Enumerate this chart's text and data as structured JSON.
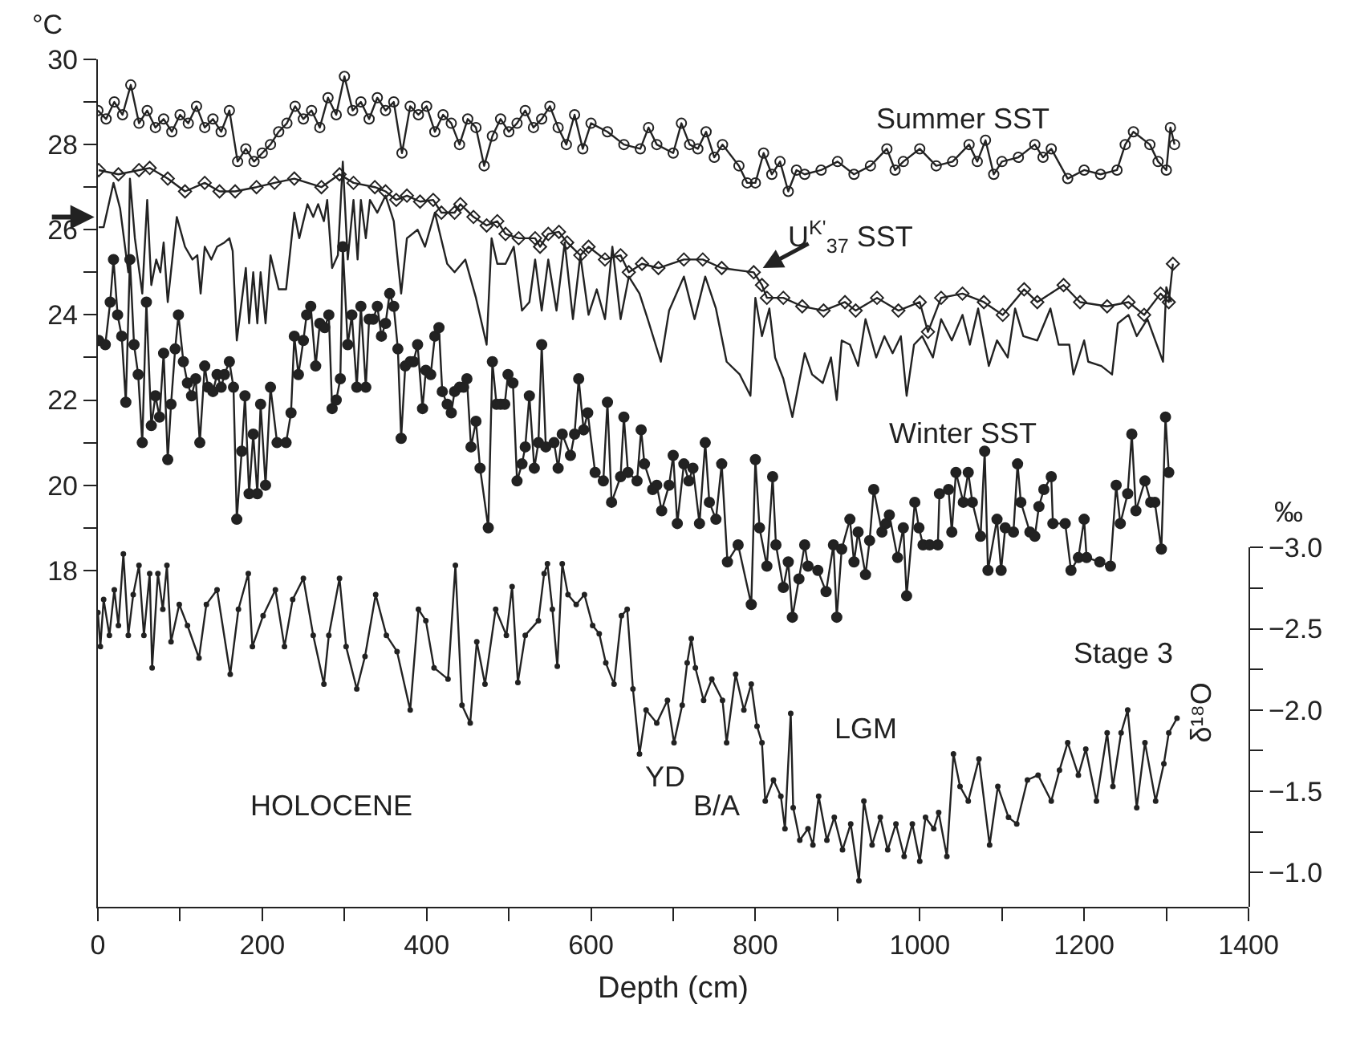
{
  "chart_data": {
    "type": "line",
    "xlabel": "Depth (cm)",
    "ylabel": "°C",
    "y2label": "δ¹⁸O",
    "xlim": [
      0,
      1400
    ],
    "xticks": [
      0,
      {
        "value": 100,
        "label": null
      },
      200,
      {
        "value": 300,
        "label": null
      },
      400,
      {
        "value": 500,
        "label": null
      },
      600,
      {
        "value": 700,
        "label": null
      },
      800,
      {
        "value": 900,
        "label": null
      },
      1000,
      {
        "value": 1100,
        "label": null
      },
      1200,
      {
        "value": 1300,
        "label": null
      },
      1400
    ],
    "ylim": [
      10.1,
      30
    ],
    "yticks": [
      18,
      {
        "value": 19,
        "label": null
      },
      20,
      {
        "value": 21,
        "label": null
      },
      22,
      {
        "value": 23,
        "label": null
      },
      24,
      {
        "value": 25,
        "label": null
      },
      26,
      {
        "value": 27,
        "label": null
      },
      28,
      {
        "value": 29,
        "label": null
      },
      30
    ],
    "y2lim": [
      -0.79,
      -3.0
    ],
    "y2ticks": [
      {
        "value": -3.0,
        "label": "−3.0"
      },
      {
        "value": -2.75,
        "label": null
      },
      {
        "value": -2.5,
        "label": "−2.5"
      },
      {
        "value": -2.25,
        "label": null
      },
      {
        "value": -2.0,
        "label": "−2.0"
      },
      {
        "value": -1.75,
        "label": null
      },
      {
        "value": -1.5,
        "label": "−1.5"
      },
      {
        "value": -1.25,
        "label": null
      },
      {
        "value": -1.0,
        "label": "−1.0"
      }
    ],
    "grid": false,
    "legend": false,
    "annotations": [
      "HOLOCENE",
      "YD",
      "B/A",
      "LGM",
      "Stage 3",
      "‰"
    ],
    "series": [
      {
        "name": "Summer SST",
        "color": "#222222",
        "marker": "circle-open",
        "x": [
          0,
          10,
          20,
          30,
          40,
          50,
          60,
          70,
          80,
          90,
          100,
          110,
          120,
          130,
          140,
          150,
          160,
          170,
          180,
          190,
          200,
          210,
          220,
          230,
          240,
          250,
          260,
          270,
          280,
          290,
          300,
          310,
          320,
          330,
          340,
          350,
          360,
          370,
          380,
          390,
          400,
          410,
          420,
          430,
          440,
          450,
          460,
          470,
          480,
          490,
          500,
          510,
          520,
          530,
          540,
          550,
          560,
          570,
          580,
          590,
          600,
          620,
          640,
          660,
          670,
          680,
          700,
          710,
          720,
          730,
          740,
          750,
          760,
          780,
          790,
          800,
          810,
          820,
          830,
          840,
          850,
          860,
          880,
          900,
          920,
          940,
          960,
          970,
          980,
          1000,
          1020,
          1040,
          1060,
          1070,
          1080,
          1090,
          1100,
          1120,
          1140,
          1150,
          1160,
          1180,
          1200,
          1220,
          1240,
          1250,
          1260,
          1280,
          1290,
          1300,
          1305,
          1310
        ],
        "values": [
          28.8,
          28.6,
          29.0,
          28.7,
          29.4,
          28.5,
          28.8,
          28.4,
          28.6,
          28.3,
          28.7,
          28.5,
          28.9,
          28.4,
          28.6,
          28.3,
          28.8,
          27.6,
          27.9,
          27.6,
          27.8,
          28.0,
          28.3,
          28.5,
          28.9,
          28.6,
          28.8,
          28.4,
          29.1,
          28.7,
          29.6,
          28.8,
          29.0,
          28.6,
          29.1,
          28.8,
          29.0,
          27.8,
          28.9,
          28.7,
          28.9,
          28.3,
          28.7,
          28.5,
          28.0,
          28.6,
          28.4,
          27.5,
          28.2,
          28.6,
          28.3,
          28.5,
          28.8,
          28.4,
          28.6,
          28.9,
          28.4,
          28.0,
          28.7,
          27.9,
          28.5,
          28.3,
          28.0,
          27.9,
          28.4,
          28.0,
          27.8,
          28.5,
          28.0,
          27.9,
          28.3,
          27.7,
          28.0,
          27.5,
          27.1,
          27.1,
          27.8,
          27.3,
          27.6,
          26.9,
          27.4,
          27.3,
          27.4,
          27.6,
          27.3,
          27.5,
          27.9,
          27.4,
          27.6,
          27.9,
          27.5,
          27.6,
          28.0,
          27.6,
          28.1,
          27.3,
          27.6,
          27.7,
          28.0,
          27.7,
          27.9,
          27.2,
          27.4,
          27.3,
          27.4,
          28.0,
          28.3,
          28.0,
          27.6,
          27.4,
          28.4,
          28.0
        ]
      },
      {
        "name": "U$^{K'}$$_{37}$ SST",
        "color": "#222222",
        "marker": "diamond-open",
        "x": [
          1,
          25,
          50,
          63,
          85,
          106,
          130,
          148,
          167,
          193,
          215,
          239,
          272,
          294,
          311,
          337,
          350,
          363,
          376,
          392,
          408,
          418,
          434,
          441,
          457,
          473,
          486,
          496,
          512,
          532,
          538,
          548,
          561,
          571,
          587,
          597,
          617,
          636,
          646,
          662,
          682,
          713,
          736,
          759,
          798,
          808,
          814,
          834,
          857,
          883,
          909,
          922,
          948,
          974,
          1000,
          1010,
          1026,
          1052,
          1078,
          1101,
          1127,
          1143,
          1175,
          1195,
          1228,
          1254,
          1273,
          1293,
          1303,
          1308
        ],
        "values": [
          27.4,
          27.3,
          27.4,
          27.45,
          27.2,
          26.9,
          27.1,
          26.9,
          26.9,
          27.0,
          27.1,
          27.2,
          27.0,
          27.3,
          27.1,
          27.0,
          26.9,
          26.7,
          26.8,
          26.66,
          26.7,
          26.4,
          26.4,
          26.6,
          26.3,
          26.1,
          26.2,
          25.9,
          25.8,
          25.8,
          25.6,
          25.9,
          25.95,
          25.7,
          25.4,
          25.6,
          25.3,
          25.4,
          25.0,
          25.2,
          25.1,
          25.3,
          25.3,
          25.1,
          25.0,
          24.7,
          24.4,
          24.4,
          24.2,
          24.1,
          24.3,
          24.1,
          24.4,
          24.1,
          24.3,
          23.6,
          24.4,
          24.5,
          24.3,
          24.0,
          24.6,
          24.3,
          24.7,
          24.3,
          24.2,
          24.3,
          24.0,
          24.5,
          24.3,
          25.2
        ]
      },
      {
        "color": "#222222",
        "marker": "none",
        "x": [
          1,
          7,
          19,
          27,
          37,
          39,
          45,
          54,
          60,
          65,
          71,
          76,
          80,
          85,
          96,
          106,
          115,
          121,
          125,
          130,
          138,
          145,
          154,
          160,
          164,
          169,
          180,
          184,
          189,
          194,
          198,
          204,
          210,
          220,
          229,
          239,
          245,
          255,
          262,
          268,
          275,
          279,
          285,
          292,
          298,
          304,
          311,
          316,
          320,
          326,
          331,
          340,
          350,
          360,
          369,
          376,
          389,
          398,
          410,
          425,
          434,
          447,
          460,
          473,
          479,
          486,
          496,
          506,
          516,
          525,
          532,
          540,
          548,
          558,
          568,
          578,
          587,
          597,
          607,
          617,
          626,
          636,
          646,
          659,
          669,
          685,
          695,
          713,
          726,
          739,
          752,
          765,
          781,
          794,
          800,
          808,
          817,
          824,
          834,
          845,
          853,
          860,
          869,
          882,
          892,
          899,
          905,
          915,
          925,
          934,
          947,
          957,
          967,
          977,
          984,
          993,
          1003,
          1016,
          1026,
          1039,
          1052,
          1061,
          1071,
          1084,
          1094,
          1107,
          1116,
          1126,
          1143,
          1159,
          1169,
          1182,
          1187,
          1200,
          1205,
          1221,
          1234,
          1241,
          1254,
          1264,
          1277,
          1296,
          1300,
          1306
        ],
        "values": [
          26.06,
          26.06,
          27.1,
          26.5,
          25.0,
          27.2,
          25.8,
          24.5,
          26.7,
          24.7,
          25.3,
          25.0,
          25.7,
          24.3,
          26.3,
          25.6,
          25.3,
          25.4,
          24.5,
          25.6,
          25.3,
          25.6,
          25.7,
          25.8,
          25.5,
          23.4,
          25.1,
          23.8,
          25.0,
          23.8,
          25.0,
          23.8,
          25.4,
          24.6,
          24.6,
          26.4,
          25.8,
          26.6,
          26.3,
          26.6,
          26.2,
          26.7,
          25.1,
          25.4,
          27.6,
          25.3,
          26.7,
          25.3,
          26.7,
          25.8,
          26.7,
          26.4,
          26.8,
          26.2,
          24.5,
          25.8,
          26.0,
          25.6,
          26.4,
          25.2,
          25.0,
          25.3,
          24.4,
          23.3,
          25.8,
          25.2,
          25.2,
          25.6,
          24.1,
          24.3,
          25.3,
          24.1,
          25.3,
          24.1,
          25.7,
          23.9,
          25.4,
          24.0,
          24.6,
          23.9,
          25.6,
          23.9,
          24.9,
          24.5,
          23.9,
          22.9,
          24.1,
          24.9,
          23.9,
          24.9,
          24.15,
          22.9,
          22.6,
          22.1,
          24.4,
          23.5,
          24.15,
          23.0,
          22.5,
          21.6,
          22.4,
          23.1,
          22.6,
          22.4,
          23.0,
          22.0,
          23.4,
          23.3,
          22.8,
          23.9,
          23.0,
          23.5,
          23.1,
          23.5,
          22.1,
          23.3,
          23.5,
          23.0,
          23.9,
          23.4,
          24.0,
          23.3,
          24.15,
          22.8,
          23.4,
          23.0,
          24.15,
          23.5,
          23.4,
          24.15,
          23.3,
          23.3,
          22.6,
          23.4,
          22.9,
          22.8,
          22.6,
          23.8,
          24.0,
          23.5,
          23.9,
          22.9,
          24.65,
          24.3
        ]
      },
      {
        "name": "Winter SST",
        "color": "#222222",
        "marker": "circle",
        "x": [
          1,
          9,
          15,
          19,
          24,
          29,
          34,
          39,
          44,
          49,
          54,
          59,
          65,
          70,
          75,
          80,
          85,
          89,
          94,
          98,
          104,
          109,
          114,
          119,
          124,
          130,
          134,
          140,
          145,
          150,
          154,
          160,
          165,
          169,
          175,
          179,
          184,
          189,
          194,
          198,
          204,
          210,
          218,
          229,
          235,
          239,
          244,
          250,
          254,
          259,
          265,
          270,
          276,
          281,
          285,
          290,
          295,
          298,
          304,
          309,
          315,
          320,
          326,
          330,
          335,
          340,
          345,
          350,
          355,
          360,
          365,
          369,
          374,
          380,
          384,
          389,
          395,
          399,
          405,
          410,
          415,
          419,
          425,
          430,
          434,
          440,
          445,
          449,
          454,
          460,
          465,
          475,
          480,
          485,
          490,
          495,
          499,
          505,
          510,
          516,
          520,
          525,
          531,
          536,
          540,
          545,
          555,
          560,
          565,
          575,
          580,
          585,
          591,
          596,
          605,
          615,
          620,
          625,
          636,
          640,
          645,
          656,
          661,
          665,
          675,
          680,
          686,
          695,
          700,
          705,
          713,
          719,
          724,
          732,
          739,
          744,
          752,
          759,
          766,
          779,
          795,
          800,
          805,
          814,
          821,
          825,
          834,
          840,
          845,
          853,
          860,
          864,
          876,
          886,
          895,
          899,
          905,
          915,
          920,
          925,
          934,
          939,
          944,
          954,
          959,
          963,
          973,
          980,
          984,
          994,
          999,
          1004,
          1012,
          1022,
          1024,
          1035,
          1039,
          1044,
          1053,
          1059,
          1064,
          1074,
          1079,
          1083,
          1094,
          1099,
          1104,
          1114,
          1119,
          1123,
          1134,
          1140,
          1145,
          1151,
          1160,
          1162,
          1177,
          1184,
          1193,
          1200,
          1203,
          1219,
          1232,
          1239,
          1244,
          1253,
          1258,
          1263,
          1274,
          1281,
          1286,
          1294,
          1299,
          1303
        ],
        "values": [
          23.4,
          23.3,
          24.3,
          25.3,
          24.0,
          23.5,
          21.95,
          25.3,
          23.3,
          22.6,
          21.0,
          24.3,
          21.4,
          22.1,
          21.6,
          23.1,
          20.6,
          21.9,
          23.2,
          24.0,
          22.9,
          22.4,
          22.1,
          22.5,
          21.0,
          22.8,
          22.3,
          22.2,
          22.6,
          22.3,
          22.6,
          22.9,
          22.3,
          19.2,
          20.8,
          22.1,
          19.8,
          21.2,
          19.8,
          21.9,
          20.0,
          22.3,
          21.0,
          21.0,
          21.7,
          23.5,
          22.6,
          23.4,
          24.0,
          24.2,
          22.8,
          23.8,
          23.7,
          24.0,
          21.8,
          22.0,
          22.5,
          25.6,
          23.3,
          24.0,
          22.3,
          24.2,
          22.3,
          23.9,
          23.9,
          24.2,
          23.5,
          23.8,
          24.5,
          24.2,
          23.2,
          21.1,
          22.8,
          22.9,
          22.9,
          23.3,
          21.8,
          22.7,
          22.6,
          23.5,
          23.7,
          22.2,
          21.9,
          21.7,
          22.2,
          22.3,
          22.3,
          22.5,
          20.9,
          21.5,
          20.4,
          19.0,
          22.9,
          21.9,
          21.9,
          21.9,
          22.6,
          22.4,
          20.1,
          20.5,
          20.9,
          22.1,
          20.4,
          21.0,
          23.3,
          20.9,
          21.0,
          20.4,
          21.2,
          20.7,
          21.2,
          22.5,
          21.3,
          21.7,
          20.3,
          20.1,
          21.95,
          19.6,
          20.2,
          21.6,
          20.3,
          20.1,
          21.3,
          20.5,
          19.9,
          20.0,
          19.4,
          20.0,
          20.7,
          19.1,
          20.5,
          20.1,
          20.4,
          19.1,
          21.0,
          19.6,
          19.2,
          20.5,
          18.2,
          18.6,
          17.2,
          20.6,
          19.0,
          18.1,
          20.2,
          18.6,
          17.6,
          18.2,
          16.9,
          17.8,
          18.6,
          18.1,
          18.0,
          17.5,
          18.6,
          16.9,
          18.5,
          19.2,
          18.2,
          18.9,
          17.9,
          18.7,
          19.9,
          18.9,
          19.1,
          19.3,
          18.3,
          19.0,
          17.4,
          19.6,
          19.0,
          18.6,
          18.6,
          18.6,
          19.8,
          19.9,
          18.9,
          20.3,
          19.6,
          20.3,
          19.6,
          18.8,
          20.8,
          18.0,
          19.2,
          18.0,
          19.0,
          18.9,
          20.5,
          19.6,
          18.9,
          18.8,
          19.5,
          19.9,
          20.2,
          19.1,
          19.1,
          18.0,
          18.3,
          19.2,
          18.3,
          18.2,
          18.1,
          20.0,
          19.1,
          19.8,
          21.2,
          19.4,
          20.1,
          19.6,
          19.6,
          18.5,
          21.6,
          20.3
        ]
      },
      {
        "color": "#222222",
        "marker": "dot",
        "axis": "y2",
        "x": [
          0,
          3,
          7,
          14,
          20,
          25,
          31,
          37,
          43,
          50,
          56,
          63,
          66,
          73,
          79,
          84,
          89,
          99,
          109,
          123,
          132,
          145,
          161,
          171,
          183,
          188,
          201,
          216,
          227,
          237,
          250,
          262,
          275,
          281,
          294,
          302,
          315,
          325,
          338,
          351,
          364,
          380,
          390,
          399,
          409,
          426,
          435,
          443,
          453,
          461,
          471,
          484,
          497,
          504,
          511,
          520,
          536,
          543,
          547,
          553,
          559,
          565,
          572,
          582,
          592,
          602,
          610,
          618,
          628,
          637,
          644,
          651,
          659,
          667,
          680,
          693,
          701,
          711,
          717,
          722,
          727,
          737,
          747,
          760,
          765,
          776,
          786,
          795,
          802,
          808,
          812,
          822,
          831,
          836,
          843,
          846,
          854,
          864,
          870,
          877,
          887,
          896,
          906,
          916,
          926,
          932,
          942,
          952,
          961,
          971,
          981,
          991,
          1000,
          1007,
          1017,
          1023,
          1033,
          1041,
          1049,
          1059,
          1072,
          1085,
          1095,
          1108,
          1118,
          1131,
          1144,
          1160,
          1170,
          1180,
          1193,
          1202,
          1215,
          1228,
          1235,
          1245,
          1253,
          1264,
          1274,
          1287,
          1297,
          1303,
          1313
        ],
        "values": [
          -2.6,
          -2.39,
          -2.68,
          -2.46,
          -2.74,
          -2.52,
          -2.96,
          -2.46,
          -2.71,
          -2.89,
          -2.46,
          -2.84,
          -2.26,
          -2.84,
          -2.62,
          -2.89,
          -2.42,
          -2.65,
          -2.52,
          -2.32,
          -2.65,
          -2.74,
          -2.22,
          -2.62,
          -2.84,
          -2.39,
          -2.58,
          -2.74,
          -2.39,
          -2.68,
          -2.81,
          -2.46,
          -2.16,
          -2.46,
          -2.81,
          -2.39,
          -2.13,
          -2.33,
          -2.71,
          -2.46,
          -2.36,
          -2.0,
          -2.62,
          -2.55,
          -2.26,
          -2.19,
          -2.89,
          -2.03,
          -1.92,
          -2.42,
          -2.16,
          -2.62,
          -2.46,
          -2.76,
          -2.17,
          -2.46,
          -2.55,
          -2.84,
          -2.9,
          -2.62,
          -2.27,
          -2.9,
          -2.71,
          -2.65,
          -2.71,
          -2.52,
          -2.47,
          -2.29,
          -2.16,
          -2.58,
          -2.62,
          -2.13,
          -1.73,
          -2.0,
          -1.92,
          -2.06,
          -1.8,
          -2.03,
          -2.29,
          -2.44,
          -2.26,
          -2.06,
          -2.19,
          -2.06,
          -1.8,
          -2.22,
          -2.0,
          -2.16,
          -1.9,
          -1.8,
          -1.44,
          -1.57,
          -1.47,
          -1.27,
          -1.98,
          -1.4,
          -1.2,
          -1.27,
          -1.17,
          -1.47,
          -1.2,
          -1.34,
          -1.14,
          -1.3,
          -0.95,
          -1.44,
          -1.17,
          -1.34,
          -1.14,
          -1.3,
          -1.1,
          -1.3,
          -1.07,
          -1.34,
          -1.27,
          -1.37,
          -1.1,
          -1.73,
          -1.53,
          -1.44,
          -1.7,
          -1.17,
          -1.53,
          -1.34,
          -1.3,
          -1.57,
          -1.6,
          -1.44,
          -1.63,
          -1.8,
          -1.6,
          -1.76,
          -1.44,
          -1.86,
          -1.53,
          -1.86,
          -2.0,
          -1.4,
          -1.8,
          -1.44,
          -1.67,
          -1.86,
          -1.95
        ]
      }
    ]
  }
}
